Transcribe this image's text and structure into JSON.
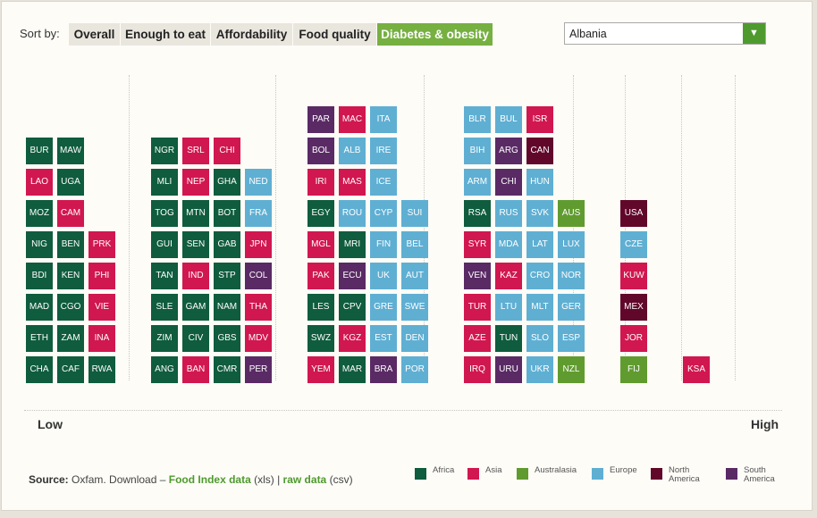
{
  "sort": {
    "label": "Sort by:",
    "buttons": [
      "Overall",
      "Enough to eat",
      "Affordability",
      "Food quality",
      "Diabetes & obesity"
    ],
    "active": "Diabetes & obesity"
  },
  "country_select": {
    "value": "Albania",
    "arrow": "▼"
  },
  "axis": {
    "low": "Low",
    "high": "High"
  },
  "source": {
    "label": "Source:",
    "text1": " Oxfam. Download – ",
    "link1": "Food Index data",
    "text2": " (xls) | ",
    "link2": "raw data",
    "text3": " (csv)"
  },
  "colors": {
    "Africa": "#0f5c3e",
    "Asia": "#d1174f",
    "Australasia": "#609b2f",
    "Europe": "#5fafd3",
    "North America": "#61072a",
    "South America": "#5a2a65"
  },
  "legend": [
    {
      "name": "Africa",
      "lines": [
        "Africa"
      ]
    },
    {
      "name": "Asia",
      "lines": [
        "Asia"
      ]
    },
    {
      "name": "Australasia",
      "lines": [
        "Australasia"
      ]
    },
    {
      "name": "Europe",
      "lines": [
        "Europe"
      ]
    },
    {
      "name": "North America",
      "lines": [
        "North",
        "America"
      ]
    },
    {
      "name": "South America",
      "lines": [
        "South",
        "America"
      ]
    }
  ],
  "chart_data": {
    "type": "table",
    "title": "",
    "xlabel_low": "Low",
    "xlabel_high": "High",
    "note": "Countries grouped by Diabetes & obesity score band; each column stacks from bottom",
    "columns": [
      [
        "CHA:Africa",
        "ETH:Africa",
        "MAD:Africa",
        "BDI:Africa",
        "NIG:Africa",
        "MOZ:Africa",
        "LAO:Asia",
        "BUR:Africa"
      ],
      [
        "CAF:Africa",
        "ZAM:Africa",
        "CGO:Africa",
        "KEN:Africa",
        "BEN:Africa",
        "CAM:Asia",
        "UGA:Africa",
        "MAW:Africa"
      ],
      [
        "RWA:Africa",
        "INA:Asia",
        "VIE:Asia",
        "PHI:Asia",
        "PRK:Asia"
      ],
      [],
      [
        "ANG:Africa",
        "ZIM:Africa",
        "SLE:Africa",
        "TAN:Africa",
        "GUI:Africa",
        "TOG:Africa",
        "MLI:Africa",
        "NGR:Africa"
      ],
      [
        "BAN:Asia",
        "CIV:Africa",
        "GAM:Africa",
        "IND:Asia",
        "SEN:Africa",
        "MTN:Africa",
        "NEP:Asia",
        "SRL:Asia"
      ],
      [
        "CMR:Africa",
        "GBS:Africa",
        "NAM:Africa",
        "STP:Africa",
        "GAB:Africa",
        "BOT:Africa",
        "GHA:Africa",
        "CHI:Asia"
      ],
      [
        "PER:South America",
        "MDV:Asia",
        "THA:Asia",
        "COL:South America",
        "JPN:Asia",
        "FRA:Europe",
        "NED:Europe"
      ],
      [],
      [
        "YEM:Asia",
        "SWZ:Africa",
        "LES:Africa",
        "PAK:Asia",
        "MGL:Asia",
        "EGY:Africa",
        "IRI:Asia",
        "BOL:South America",
        "PAR:South America"
      ],
      [
        "MAR:Africa",
        "KGZ:Asia",
        "CPV:Africa",
        "ECU:South America",
        "MRI:Africa",
        "ROU:Europe",
        "MAS:Asia",
        "ALB:Europe",
        "MAC:Asia"
      ],
      [
        "BRA:South America",
        "EST:Europe",
        "GRE:Europe",
        "UK:Europe",
        "FIN:Europe",
        "CYP:Europe",
        "ICE:Europe",
        "IRE:Europe",
        "ITA:Europe"
      ],
      [
        "POR:Europe",
        "DEN:Europe",
        "SWE:Europe",
        "AUT:Europe",
        "BEL:Europe",
        "SUI:Europe"
      ],
      [],
      [
        "IRQ:Asia",
        "AZE:Asia",
        "TUR:Asia",
        "VEN:South America",
        "SYR:Asia",
        "RSA:Africa",
        "ARM:Europe",
        "BIH:Europe",
        "BLR:Europe"
      ],
      [
        "URU:South America",
        "TUN:Africa",
        "LTU:Europe",
        "KAZ:Asia",
        "MDA:Europe",
        "RUS:Europe",
        "CHI:South America",
        "ARG:South America",
        "BUL:Europe"
      ],
      [
        "UKR:Europe",
        "SLO:Europe",
        "MLT:Europe",
        "CRO:Europe",
        "LAT:Europe",
        "SVK:Europe",
        "HUN:Europe",
        "CAN:North America",
        "ISR:Asia"
      ],
      [
        "NZL:Australasia",
        "ESP:Europe",
        "GER:Europe",
        "NOR:Europe",
        "LUX:Europe",
        "AUS:Australasia"
      ],
      [],
      [
        "FIJ:Australasia",
        "JOR:Asia",
        "MEX:North America",
        "KUW:Asia",
        "CZE:Europe",
        "USA:North America"
      ],
      [],
      [
        "KSA:Asia"
      ]
    ]
  }
}
